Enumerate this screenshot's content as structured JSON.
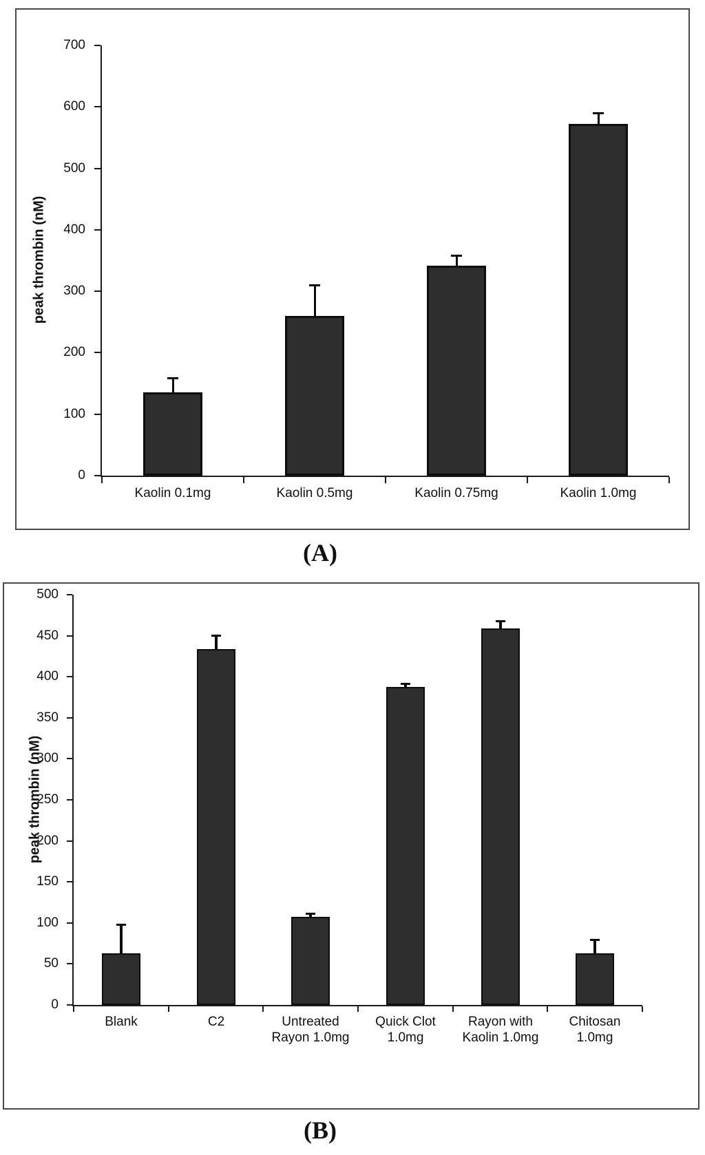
{
  "colors": {
    "bar_fill": "#2e2e2e",
    "bar_border": "#0d0d0d",
    "axis": "#1a1a1a",
    "box_border": "#4a4a4a",
    "text": "#111111"
  },
  "chart_data": [
    {
      "id": "A",
      "type": "bar",
      "caption": "(A)",
      "ylabel": "peak thrombin (nM)",
      "ylim": [
        0,
        700
      ],
      "ytick_step": 100,
      "grid": false,
      "legend": "none",
      "categories": [
        "Kaolin 0.1mg",
        "Kaolin 0.5mg",
        "Kaolin 0.75mg",
        "Kaolin 1.0mg"
      ],
      "category_label_lines": [
        [
          "Kaolin 0.1mg"
        ],
        [
          "Kaolin 0.5mg"
        ],
        [
          "Kaolin 0.75mg"
        ],
        [
          "Kaolin 1.0mg"
        ]
      ],
      "values": [
        136,
        260,
        342,
        572
      ],
      "errors_upper": [
        24,
        50,
        17,
        18
      ]
    },
    {
      "id": "B",
      "type": "bar",
      "caption": "(B)",
      "ylabel": "peak thrombin (nM)",
      "ylim": [
        0,
        500
      ],
      "ytick_step": 50,
      "grid": false,
      "legend": "none",
      "categories": [
        "Blank",
        "C2",
        "Untreated Rayon 1.0mg",
        "Quick Clot 1.0mg",
        "Rayon with Kaolin 1.0mg",
        "Chitosan 1.0mg"
      ],
      "category_label_lines": [
        [
          "Blank"
        ],
        [
          "C2"
        ],
        [
          "Untreated",
          "Rayon 1.0mg"
        ],
        [
          "Quick Clot",
          "1.0mg"
        ],
        [
          "Rayon with",
          "Kaolin 1.0mg"
        ],
        [
          "Chitosan",
          "1.0mg"
        ]
      ],
      "values": [
        63,
        434,
        107,
        388,
        459,
        63
      ],
      "errors_upper": [
        35,
        17,
        4,
        4,
        9,
        17
      ]
    }
  ]
}
